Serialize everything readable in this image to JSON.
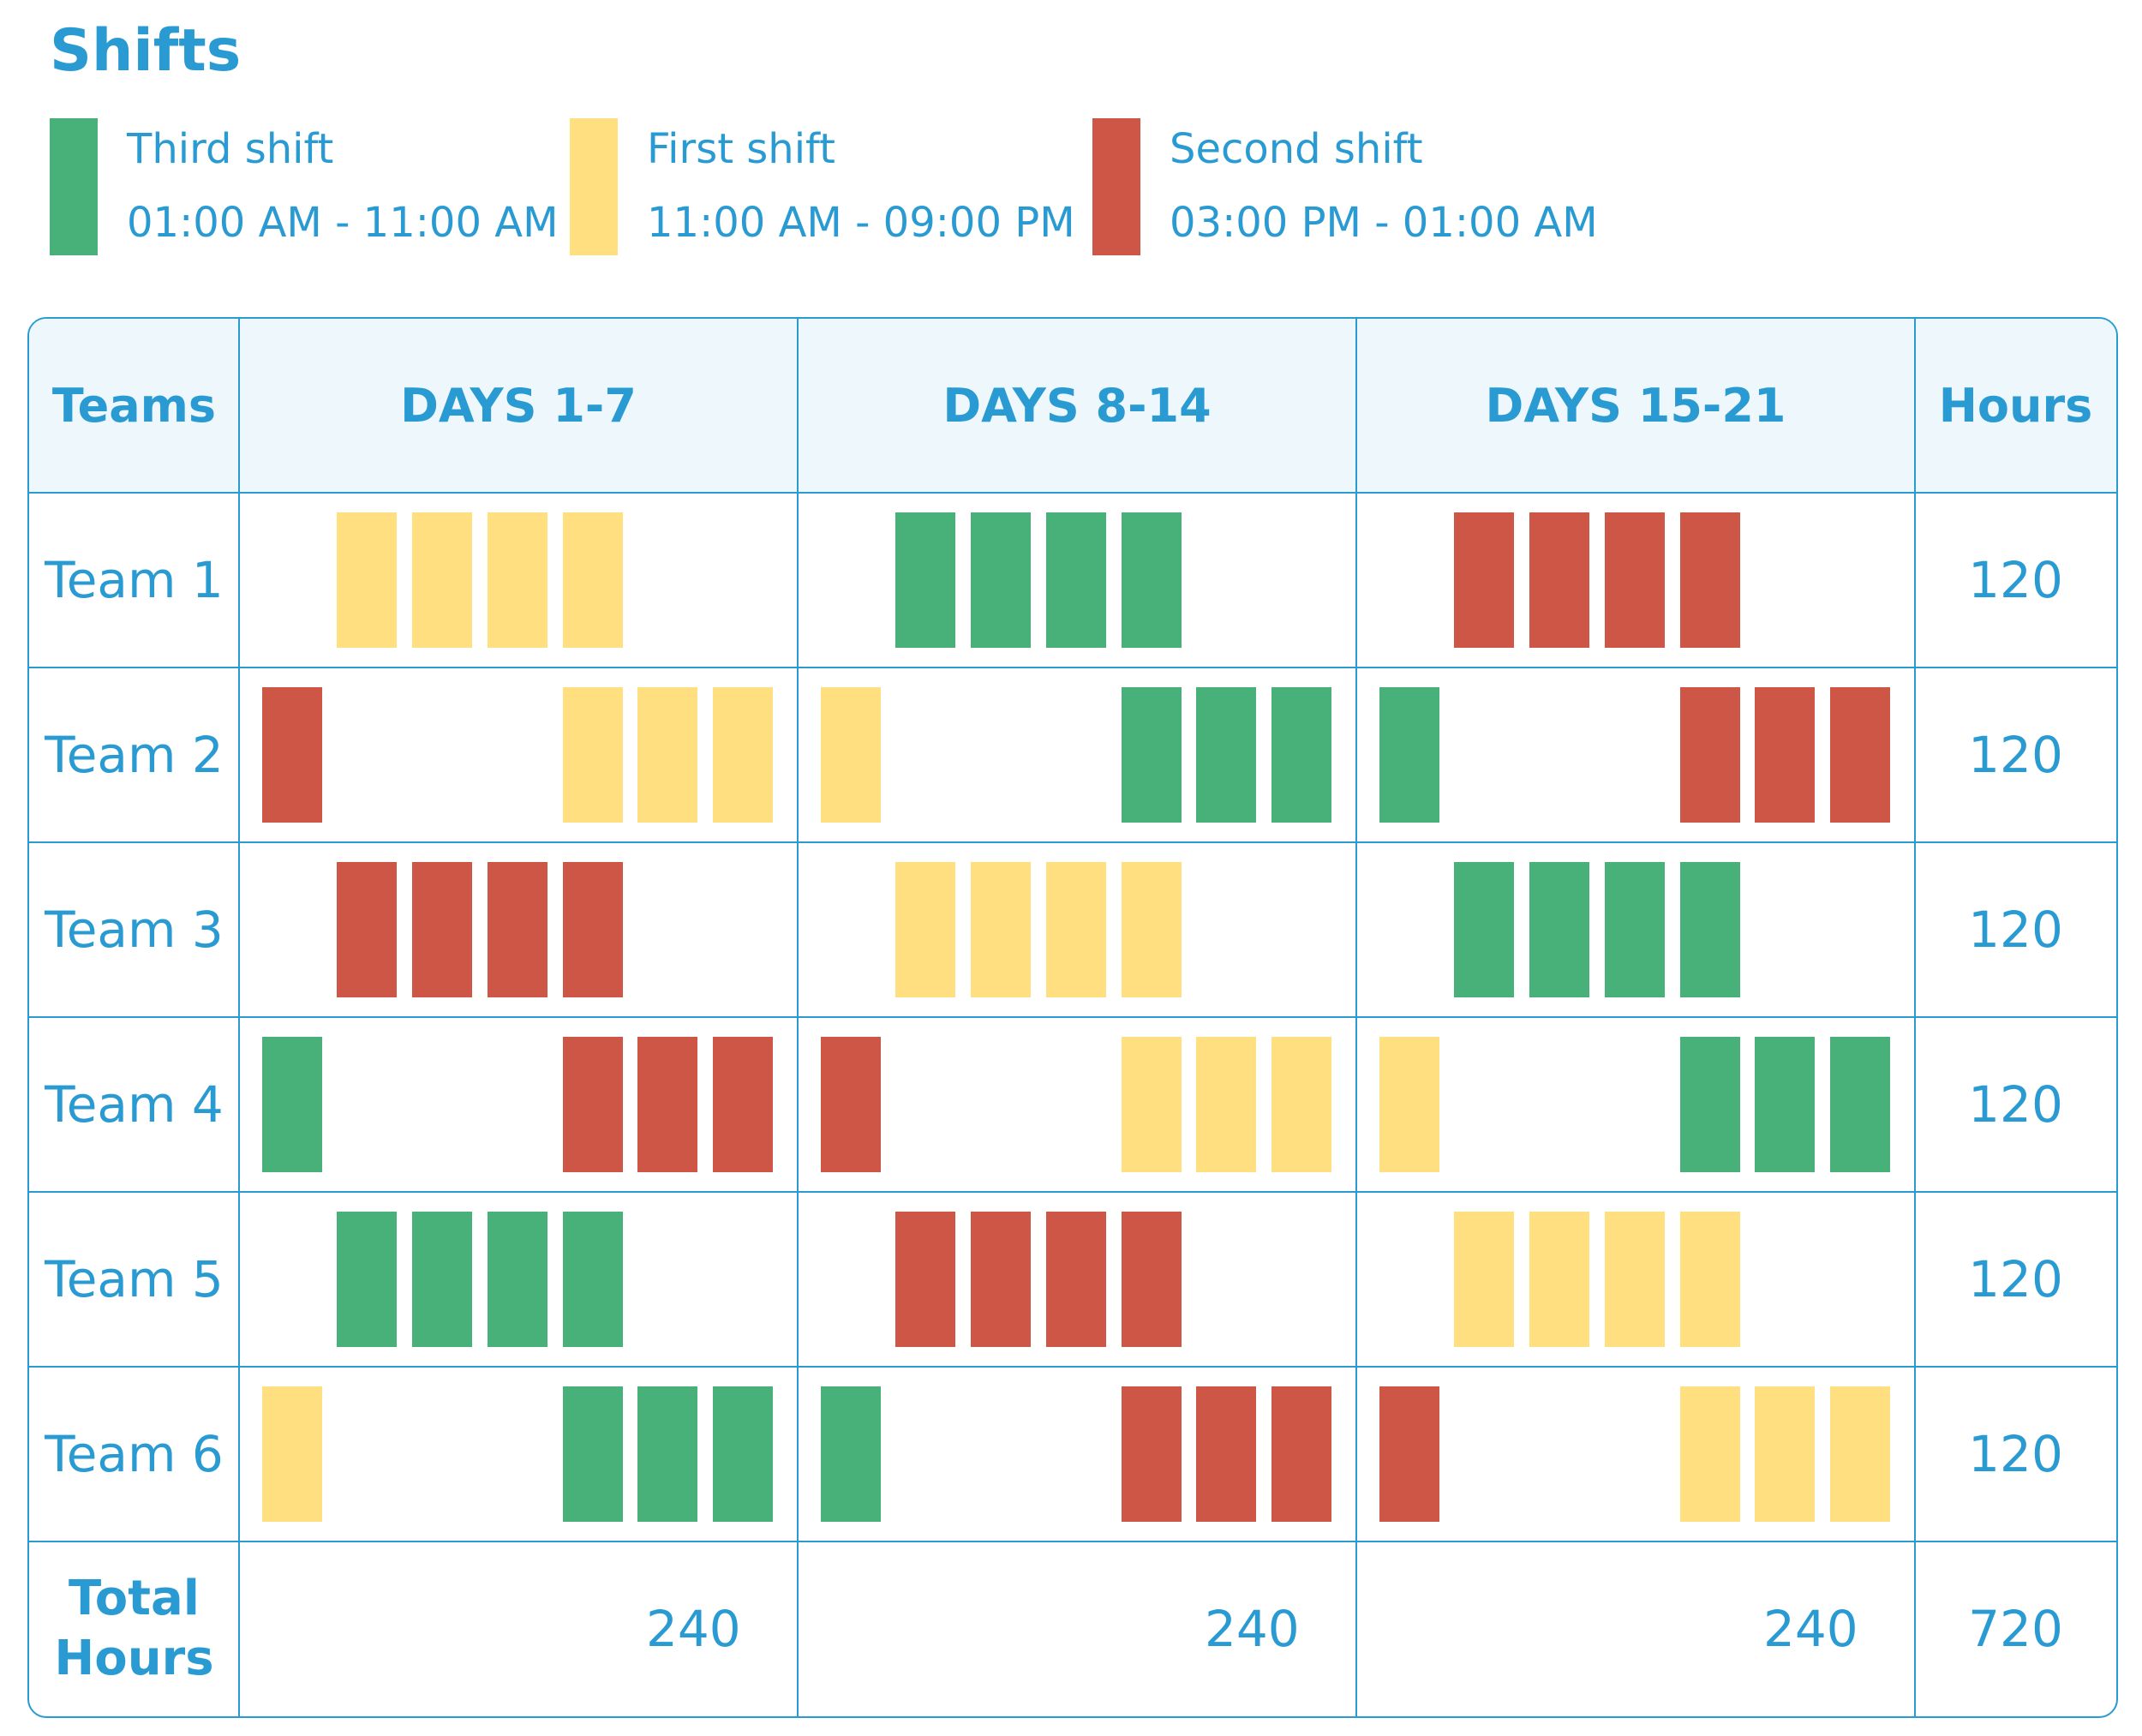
{
  "title": "Shifts",
  "shifts": {
    "third": {
      "name": "Third shift",
      "time": "01:00 AM - 11:00 AM",
      "color": "#48B17A"
    },
    "first": {
      "name": "First shift",
      "time": "11:00 AM - 09:00 PM",
      "color": "#FFDF80"
    },
    "second": {
      "name": "Second shift",
      "time": "03:00 PM - 01:00 AM",
      "color": "#CD5646"
    }
  },
  "legend_order": [
    "third",
    "first",
    "second"
  ],
  "table": {
    "headers": {
      "teams": "Teams",
      "periods": [
        "DAYS 1-7",
        "DAYS 8-14",
        "DAYS 15-21"
      ],
      "hours": "Hours"
    },
    "rows": [
      {
        "team": "Team 1",
        "hours": "120",
        "schedule": [
          [
            "",
            "first",
            "first",
            "first",
            "first",
            "",
            ""
          ],
          [
            "",
            "third",
            "third",
            "third",
            "third",
            "",
            ""
          ],
          [
            "",
            "second",
            "second",
            "second",
            "second",
            "",
            ""
          ]
        ]
      },
      {
        "team": "Team 2",
        "hours": "120",
        "schedule": [
          [
            "second",
            "",
            "",
            "",
            "first",
            "first",
            "first"
          ],
          [
            "first",
            "",
            "",
            "",
            "third",
            "third",
            "third"
          ],
          [
            "third",
            "",
            "",
            "",
            "second",
            "second",
            "second"
          ]
        ]
      },
      {
        "team": "Team 3",
        "hours": "120",
        "schedule": [
          [
            "",
            "second",
            "second",
            "second",
            "second",
            "",
            ""
          ],
          [
            "",
            "first",
            "first",
            "first",
            "first",
            "",
            ""
          ],
          [
            "",
            "third",
            "third",
            "third",
            "third",
            "",
            ""
          ]
        ]
      },
      {
        "team": "Team 4",
        "hours": "120",
        "schedule": [
          [
            "third",
            "",
            "",
            "",
            "second",
            "second",
            "second"
          ],
          [
            "second",
            "",
            "",
            "",
            "first",
            "first",
            "first"
          ],
          [
            "first",
            "",
            "",
            "",
            "third",
            "third",
            "third"
          ]
        ]
      },
      {
        "team": "Team 5",
        "hours": "120",
        "schedule": [
          [
            "",
            "third",
            "third",
            "third",
            "third",
            "",
            ""
          ],
          [
            "",
            "second",
            "second",
            "second",
            "second",
            "",
            ""
          ],
          [
            "",
            "first",
            "first",
            "first",
            "first",
            "",
            ""
          ]
        ]
      },
      {
        "team": "Team 6",
        "hours": "120",
        "schedule": [
          [
            "first",
            "",
            "",
            "",
            "third",
            "third",
            "third"
          ],
          [
            "third",
            "",
            "",
            "",
            "second",
            "second",
            "second"
          ],
          [
            "second",
            "",
            "",
            "",
            "first",
            "first",
            "first"
          ]
        ]
      }
    ],
    "totals": {
      "label": "Total Hours",
      "periods": [
        "240",
        "240",
        "240"
      ],
      "overall": "720"
    }
  }
}
